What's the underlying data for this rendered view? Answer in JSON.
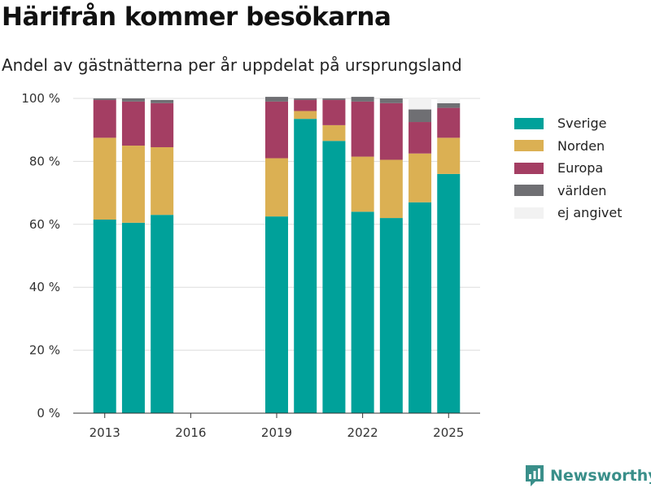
{
  "title": "Härifrån kommer besökarna",
  "subtitle": "Andel av gästnätterna per år uppdelat på ursprungsland",
  "brand": {
    "name": "Newsworthy"
  },
  "colors": {
    "Sverige": "#00a19a",
    "Norden": "#dbb053",
    "Europa": "#a43e63",
    "världen": "#6f6f73",
    "ej angivet": "#f2f2f2"
  },
  "chart_data": {
    "type": "bar",
    "stacked": true,
    "x": [
      2013,
      2014,
      2015,
      2019,
      2020,
      2021,
      2022,
      2023,
      2024,
      2025
    ],
    "xticks": [
      "2013",
      "2016",
      "2019",
      "2022",
      "2025"
    ],
    "xtick_values": [
      2013,
      2016,
      2019,
      2022,
      2025
    ],
    "xlim": [
      2011.9,
      2026.1
    ],
    "ylim": [
      0,
      100
    ],
    "yticks": [
      "0 %",
      "20 %",
      "40 %",
      "60 %",
      "80 %",
      "100 %"
    ],
    "ytick_values": [
      0,
      20,
      40,
      60,
      80,
      100
    ],
    "grid": true,
    "legend_position": "right",
    "series": [
      {
        "name": "Sverige",
        "values": [
          61.5,
          60.5,
          63.0,
          62.5,
          93.5,
          86.5,
          64.0,
          62.0,
          67.0,
          76.0
        ]
      },
      {
        "name": "Norden",
        "values": [
          26.0,
          24.5,
          21.5,
          18.5,
          2.5,
          5.0,
          17.5,
          18.5,
          15.5,
          11.5
        ]
      },
      {
        "name": "Europa",
        "values": [
          12.0,
          14.0,
          14.0,
          18.0,
          3.5,
          8.0,
          17.5,
          18.0,
          10.0,
          9.5
        ]
      },
      {
        "name": "världen",
        "values": [
          0.5,
          1.0,
          1.0,
          1.5,
          0.5,
          0.5,
          1.5,
          1.5,
          4.0,
          1.5
        ]
      },
      {
        "name": "ej angivet",
        "values": [
          0,
          0,
          0.5,
          0,
          0,
          0,
          0,
          0.5,
          3.5,
          1.5
        ]
      }
    ]
  }
}
